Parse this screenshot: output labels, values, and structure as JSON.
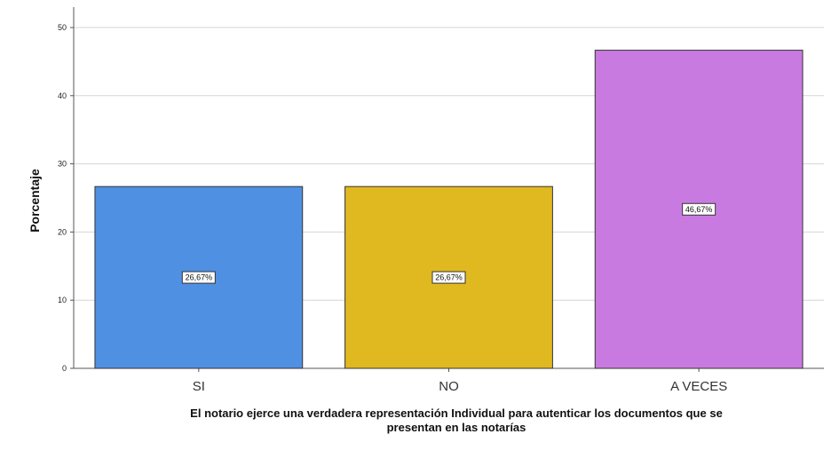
{
  "chart_data": {
    "type": "bar",
    "categories": [
      "SI",
      "NO",
      "A VECES"
    ],
    "values": [
      26.67,
      26.67,
      46.67
    ],
    "data_labels": [
      "26,67%",
      "26,67%",
      "46,67%"
    ],
    "colors": [
      "#4f90e3",
      "#e0b820",
      "#c97ae0"
    ],
    "ylabel": "Porcentaje",
    "xlabel_lines": [
      "El notario ejerce una verdadera representación Individual para autenticar los documentos que se",
      "presentan en las notarías"
    ],
    "ylim": [
      0,
      50
    ],
    "yticks": [
      0,
      10,
      20,
      30,
      40,
      50
    ],
    "grid": true
  }
}
